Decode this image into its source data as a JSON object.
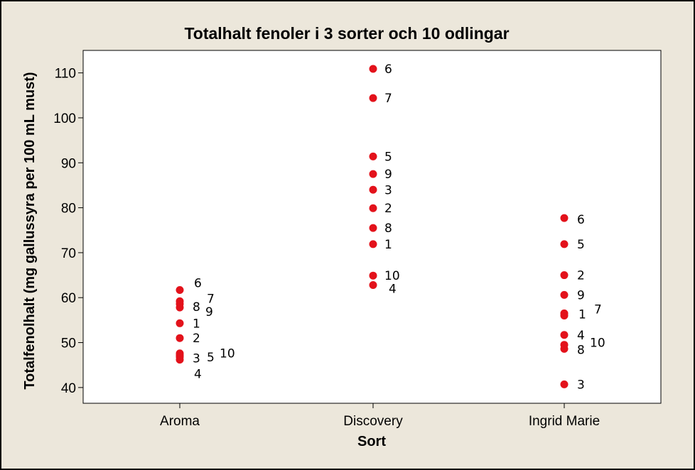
{
  "chart_data": {
    "type": "scatter",
    "title": "Totalhalt fenoler i 3 sorter och 10 odlingar",
    "xlabel": "Sort",
    "ylabel": "Totalfenolhalt (mg gallussyra per 100 mL must)",
    "categories": [
      "Aroma",
      "Discovery",
      "Ingrid Marie"
    ],
    "ylim": [
      36.5,
      115
    ],
    "yticks": [
      40,
      50,
      60,
      70,
      80,
      90,
      100,
      110
    ],
    "grid": false,
    "legend": "none",
    "point_color": "#e3121b",
    "background_color": "#ece7db",
    "plot_background_color": "#ffffff",
    "series": [
      {
        "category": "Aroma",
        "points": [
          {
            "label": "1",
            "y": 54.3
          },
          {
            "label": "2",
            "y": 51.0
          },
          {
            "label": "3",
            "y": 47.2
          },
          {
            "label": "4",
            "y": 46.2
          },
          {
            "label": "5",
            "y": 46.8
          },
          {
            "label": "6",
            "y": 61.7
          },
          {
            "label": "7",
            "y": 59.2
          },
          {
            "label": "8",
            "y": 58.6
          },
          {
            "label": "9",
            "y": 57.8
          },
          {
            "label": "10",
            "y": 47.6
          }
        ]
      },
      {
        "category": "Discovery",
        "points": [
          {
            "label": "1",
            "y": 71.9
          },
          {
            "label": "2",
            "y": 79.9
          },
          {
            "label": "3",
            "y": 84.0
          },
          {
            "label": "4",
            "y": 62.8
          },
          {
            "label": "5",
            "y": 91.4
          },
          {
            "label": "6",
            "y": 110.9
          },
          {
            "label": "7",
            "y": 104.4
          },
          {
            "label": "8",
            "y": 75.5
          },
          {
            "label": "9",
            "y": 87.5
          },
          {
            "label": "10",
            "y": 64.9
          }
        ]
      },
      {
        "category": "Ingrid Marie",
        "points": [
          {
            "label": "1",
            "y": 56.0
          },
          {
            "label": "2",
            "y": 65.0
          },
          {
            "label": "3",
            "y": 40.7
          },
          {
            "label": "4",
            "y": 51.7
          },
          {
            "label": "5",
            "y": 71.9
          },
          {
            "label": "6",
            "y": 77.7
          },
          {
            "label": "7",
            "y": 56.5
          },
          {
            "label": "8",
            "y": 48.6
          },
          {
            "label": "9",
            "y": 60.6
          },
          {
            "label": "10",
            "y": 49.5
          }
        ]
      }
    ]
  }
}
